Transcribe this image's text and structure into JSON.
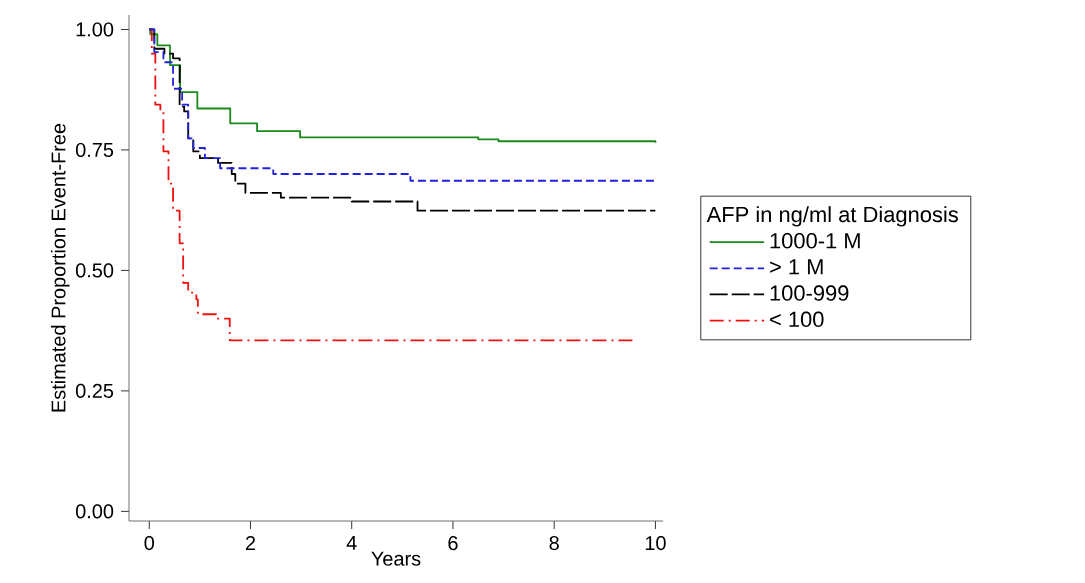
{
  "chart_data": {
    "type": "step",
    "xlabel": "Years",
    "ylabel": "Estimated Proportion Event-Free",
    "legend_title": "AFP in ng/ml at Diagnosis",
    "legend": "right",
    "xlim": [
      -0.4,
      10.15
    ],
    "ylim": [
      -0.02,
      1.03
    ],
    "xticks": [
      0,
      2,
      4,
      6,
      8,
      10
    ],
    "yticks": [
      {
        "value": 0,
        "label": "0.00"
      },
      {
        "value": 0.25,
        "label": "0.25"
      },
      {
        "value": 0.5,
        "label": "0.50"
      },
      {
        "value": 0.75,
        "label": "0.75"
      },
      {
        "value": 1,
        "label": "1.00"
      }
    ],
    "grid": false,
    "series": [
      {
        "name": "1000-1 M",
        "color": "#1a8a1a",
        "line_style": "solid",
        "x": [
          0,
          0.02,
          0.16,
          0.41,
          0.61,
          0.95,
          1.6,
          2.13,
          2.98,
          6.5,
          6.9,
          10
        ],
        "values": [
          1,
          0.99,
          0.967,
          0.926,
          0.87,
          0.836,
          0.805,
          0.789,
          0.776,
          0.772,
          0.768,
          0.765
        ]
      },
      {
        "name": "> 1 M",
        "color": "#2222dd",
        "line_style": "dashed",
        "x": [
          0,
          0.1,
          0.28,
          0.47,
          0.65,
          0.77,
          0.87,
          1.1,
          1.4,
          2.45,
          5.16,
          10
        ],
        "values": [
          1,
          0.953,
          0.932,
          0.877,
          0.844,
          0.774,
          0.754,
          0.733,
          0.712,
          0.7,
          0.686,
          0.686
        ]
      },
      {
        "name": "100-999",
        "color": "#000000",
        "line_style": "longdashed",
        "x": [
          0,
          0.1,
          0.3,
          0.47,
          0.6,
          0.69,
          0.77,
          0.87,
          1.0,
          1.36,
          1.63,
          1.7,
          1.9,
          2.6,
          4.0,
          5.3,
          10
        ],
        "values": [
          1,
          0.96,
          0.95,
          0.94,
          0.84,
          0.83,
          0.774,
          0.747,
          0.733,
          0.723,
          0.7,
          0.68,
          0.661,
          0.651,
          0.643,
          0.624,
          0.624
        ]
      },
      {
        "name": "< 100",
        "color": "#ee1111",
        "line_style": "dashdot",
        "x": [
          0,
          0.05,
          0.12,
          0.22,
          0.28,
          0.38,
          0.47,
          0.6,
          0.67,
          0.77,
          0.93,
          0.96,
          1.32,
          1.59,
          9.55
        ],
        "values": [
          1,
          0.95,
          0.844,
          0.83,
          0.747,
          0.68,
          0.624,
          0.556,
          0.474,
          0.454,
          0.44,
          0.409,
          0.4,
          0.355,
          0.355
        ]
      }
    ]
  }
}
